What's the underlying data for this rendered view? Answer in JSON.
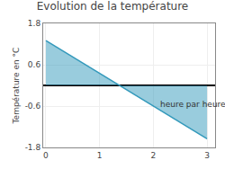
{
  "chart_data": {
    "type": "area",
    "title": "Evolution de la température",
    "ylabel": "Température en °C",
    "series": [
      {
        "x": [
          0,
          3
        ],
        "values": [
          1.3,
          -1.55
        ],
        "color": "#3399bb"
      }
    ],
    "xlim": [
      -0.05,
      3.15
    ],
    "ylim": [
      -1.8,
      1.8
    ],
    "xticks": [
      0,
      1,
      2,
      3
    ],
    "yticks": [
      -1.8,
      -0.6,
      0.6,
      1.8
    ],
    "grid": true,
    "annotations": [
      {
        "text": "heure par heure",
        "x": 2.1,
        "y": -0.55
      }
    ]
  }
}
